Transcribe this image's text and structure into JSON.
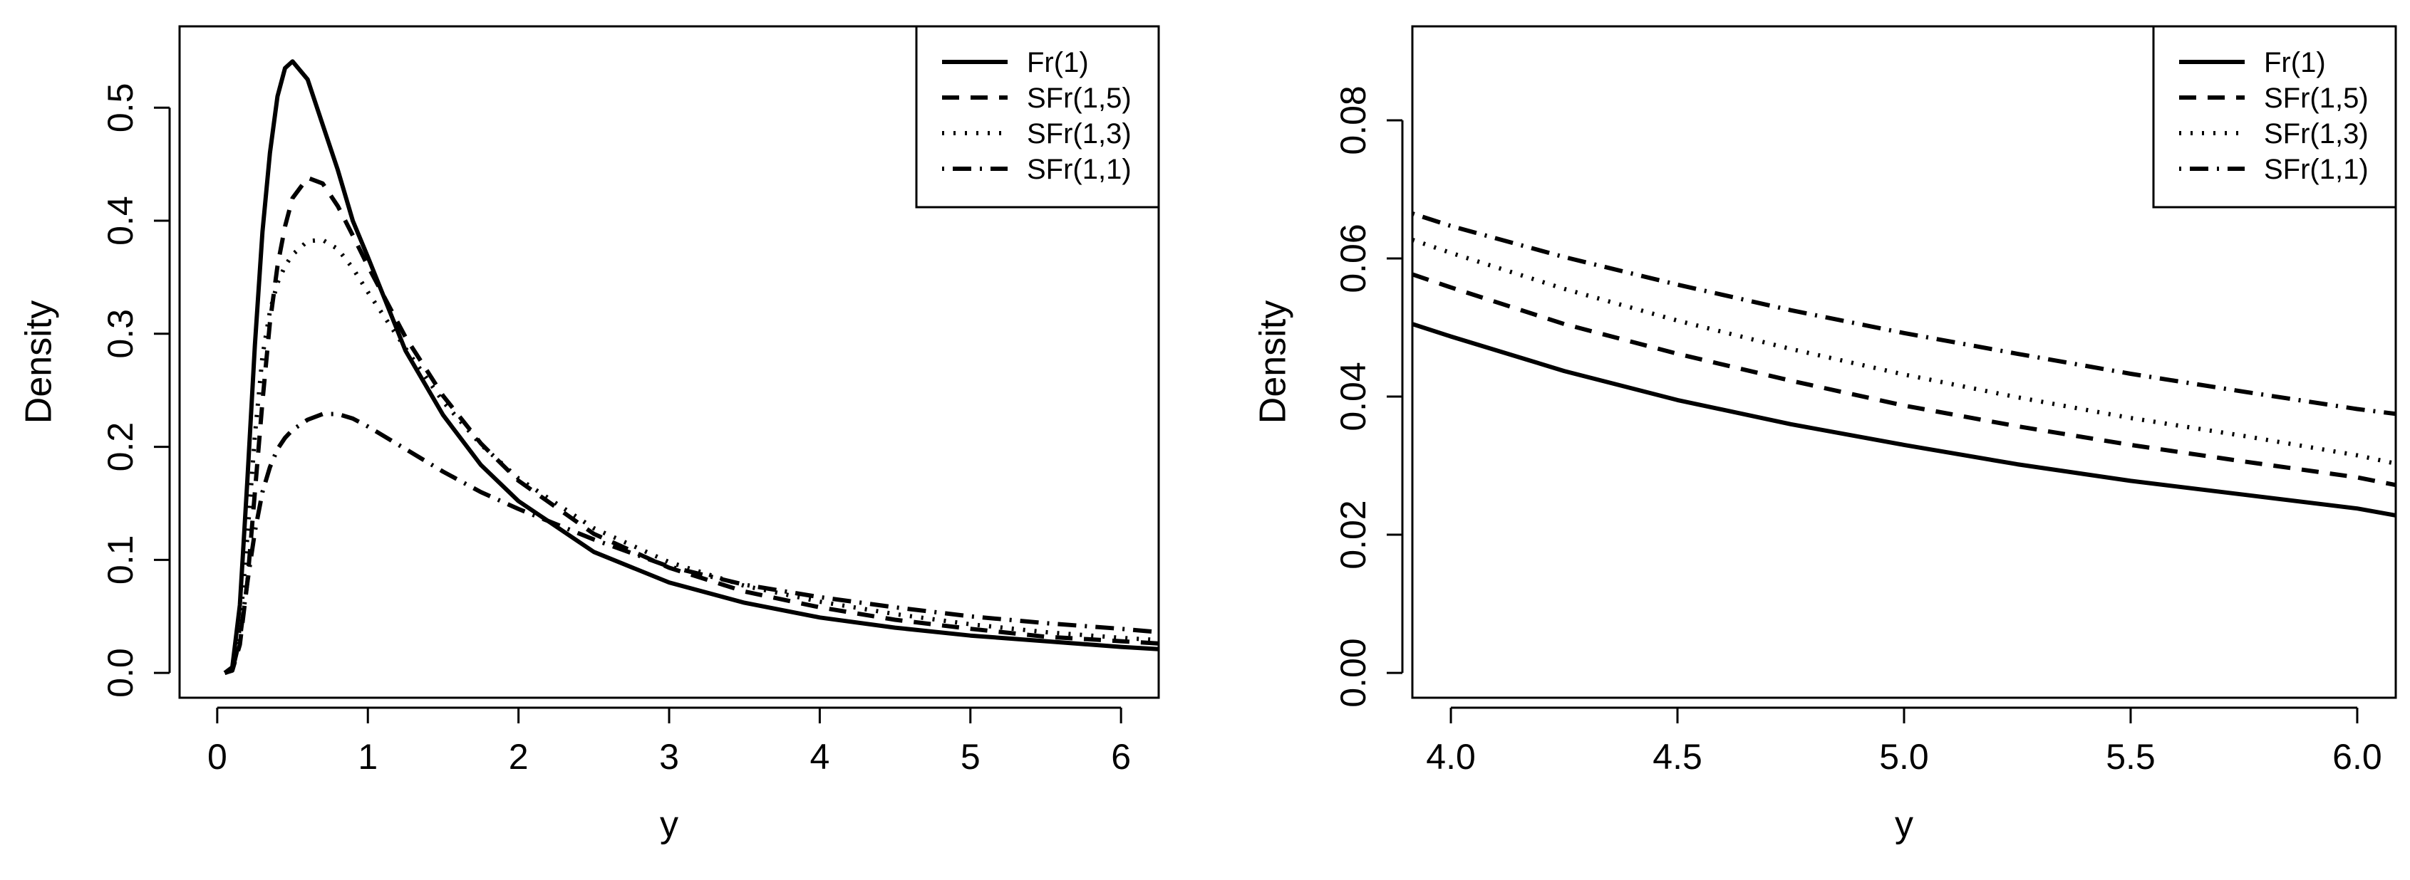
{
  "chart_data": [
    {
      "type": "line",
      "title": "",
      "xlabel": "y",
      "ylabel": "Density",
      "xlim": [
        -0.25,
        6.25
      ],
      "ylim": [
        -0.022,
        0.572
      ],
      "xticks": [
        "0",
        "1",
        "2",
        "3",
        "4",
        "5",
        "6"
      ],
      "xtick_values": [
        0,
        1,
        2,
        3,
        4,
        5,
        6
      ],
      "yticks": [
        "0.0",
        "0.1",
        "0.2",
        "0.3",
        "0.4",
        "0.5"
      ],
      "ytick_values": [
        0,
        0.1,
        0.2,
        0.3,
        0.4,
        0.5
      ],
      "grid": false,
      "legend_position": "top-right",
      "series": [
        {
          "name": "Fr(1)",
          "style": "solid",
          "x": [
            0.05,
            0.1,
            0.15,
            0.2,
            0.25,
            0.3,
            0.35,
            0.4,
            0.45,
            0.5,
            0.6,
            0.7,
            0.8,
            0.9,
            1.0,
            1.25,
            1.5,
            1.75,
            2.0,
            2.5,
            3.0,
            3.5,
            4.0,
            4.5,
            5.0,
            5.5,
            6.0,
            6.25
          ],
          "y": [
            0.0,
            0.005,
            0.06,
            0.17,
            0.29,
            0.39,
            0.46,
            0.51,
            0.535,
            0.541,
            0.525,
            0.485,
            0.445,
            0.4,
            0.368,
            0.285,
            0.228,
            0.184,
            0.152,
            0.107,
            0.08,
            0.062,
            0.049,
            0.04,
            0.033,
            0.028,
            0.023,
            0.021
          ]
        },
        {
          "name": "SFr(1,5)",
          "style": "dashed",
          "x": [
            0.05,
            0.1,
            0.15,
            0.2,
            0.25,
            0.3,
            0.35,
            0.4,
            0.45,
            0.5,
            0.6,
            0.7,
            0.8,
            0.9,
            1.0,
            1.25,
            1.5,
            1.75,
            2.0,
            2.5,
            3.0,
            3.5,
            4.0,
            4.5,
            5.0,
            5.5,
            6.0,
            6.25
          ],
          "y": [
            0.0,
            0.002,
            0.025,
            0.08,
            0.16,
            0.24,
            0.31,
            0.36,
            0.395,
            0.42,
            0.438,
            0.433,
            0.413,
            0.387,
            0.36,
            0.297,
            0.245,
            0.203,
            0.17,
            0.123,
            0.093,
            0.072,
            0.058,
            0.047,
            0.039,
            0.032,
            0.028,
            0.026
          ]
        },
        {
          "name": "SFr(1,3)",
          "style": "dotted",
          "x": [
            0.05,
            0.1,
            0.15,
            0.2,
            0.25,
            0.3,
            0.35,
            0.4,
            0.45,
            0.5,
            0.6,
            0.7,
            0.8,
            0.9,
            1.0,
            1.25,
            1.5,
            1.75,
            2.0,
            2.5,
            3.0,
            3.5,
            4.0,
            4.5,
            5.0,
            5.5,
            6.0,
            6.25
          ],
          "y": [
            0.0,
            0.003,
            0.04,
            0.12,
            0.21,
            0.28,
            0.32,
            0.345,
            0.36,
            0.37,
            0.382,
            0.383,
            0.375,
            0.358,
            0.337,
            0.287,
            0.24,
            0.202,
            0.172,
            0.128,
            0.098,
            0.077,
            0.063,
            0.052,
            0.043,
            0.036,
            0.031,
            0.029
          ]
        },
        {
          "name": "SFr(1,1)",
          "style": "dotdash",
          "x": [
            0.05,
            0.1,
            0.15,
            0.2,
            0.25,
            0.3,
            0.35,
            0.4,
            0.45,
            0.5,
            0.6,
            0.7,
            0.8,
            0.9,
            1.0,
            1.25,
            1.5,
            1.75,
            2.0,
            2.5,
            3.0,
            3.5,
            4.0,
            4.5,
            5.0,
            5.5,
            6.0,
            6.25
          ],
          "y": [
            0.0,
            0.002,
            0.03,
            0.08,
            0.125,
            0.16,
            0.182,
            0.198,
            0.208,
            0.215,
            0.224,
            0.229,
            0.229,
            0.225,
            0.218,
            0.198,
            0.178,
            0.16,
            0.145,
            0.118,
            0.094,
            0.078,
            0.067,
            0.058,
            0.05,
            0.044,
            0.039,
            0.036
          ]
        }
      ]
    },
    {
      "type": "line",
      "title": "",
      "xlabel": "y",
      "ylabel": "Density",
      "xlim": [
        3.915,
        6.085
      ],
      "ylim": [
        -0.0036,
        0.0936
      ],
      "xticks": [
        "4.0",
        "4.5",
        "5.0",
        "5.5",
        "6.0"
      ],
      "xtick_values": [
        4.0,
        4.5,
        5.0,
        5.5,
        6.0
      ],
      "yticks": [
        "0.00",
        "0.02",
        "0.04",
        "0.06",
        "0.08"
      ],
      "ytick_values": [
        0.0,
        0.02,
        0.04,
        0.06,
        0.08
      ],
      "grid": false,
      "legend_position": "top-right",
      "series": [
        {
          "name": "Fr(1)",
          "style": "solid",
          "x": [
            3.915,
            4.0,
            4.25,
            4.5,
            4.75,
            5.0,
            5.25,
            5.5,
            5.75,
            6.0,
            6.085
          ],
          "y": [
            0.0505,
            0.0487,
            0.0437,
            0.0395,
            0.036,
            0.033,
            0.0302,
            0.0278,
            0.0258,
            0.0238,
            0.0228
          ]
        },
        {
          "name": "SFr(1,5)",
          "style": "dashed",
          "x": [
            3.915,
            4.0,
            4.25,
            4.5,
            4.75,
            5.0,
            5.25,
            5.5,
            5.75,
            6.0,
            6.085
          ],
          "y": [
            0.0577,
            0.0558,
            0.0505,
            0.0462,
            0.0423,
            0.0387,
            0.0357,
            0.033,
            0.0306,
            0.0283,
            0.0272
          ]
        },
        {
          "name": "SFr(1,3)",
          "style": "dotted",
          "x": [
            3.915,
            4.0,
            4.25,
            4.5,
            4.75,
            5.0,
            5.25,
            5.5,
            5.75,
            6.0,
            6.085
          ],
          "y": [
            0.0627,
            0.0608,
            0.0556,
            0.051,
            0.0469,
            0.0432,
            0.0399,
            0.0369,
            0.0343,
            0.0315,
            0.0303
          ]
        },
        {
          "name": "SFr(1,1)",
          "style": "dotdash",
          "x": [
            3.915,
            4.0,
            4.25,
            4.5,
            4.75,
            5.0,
            5.25,
            5.5,
            5.75,
            6.0,
            6.085
          ],
          "y": [
            0.0665,
            0.0647,
            0.0602,
            0.0562,
            0.0525,
            0.0492,
            0.0462,
            0.0433,
            0.0407,
            0.0382,
            0.0375
          ]
        }
      ]
    }
  ]
}
